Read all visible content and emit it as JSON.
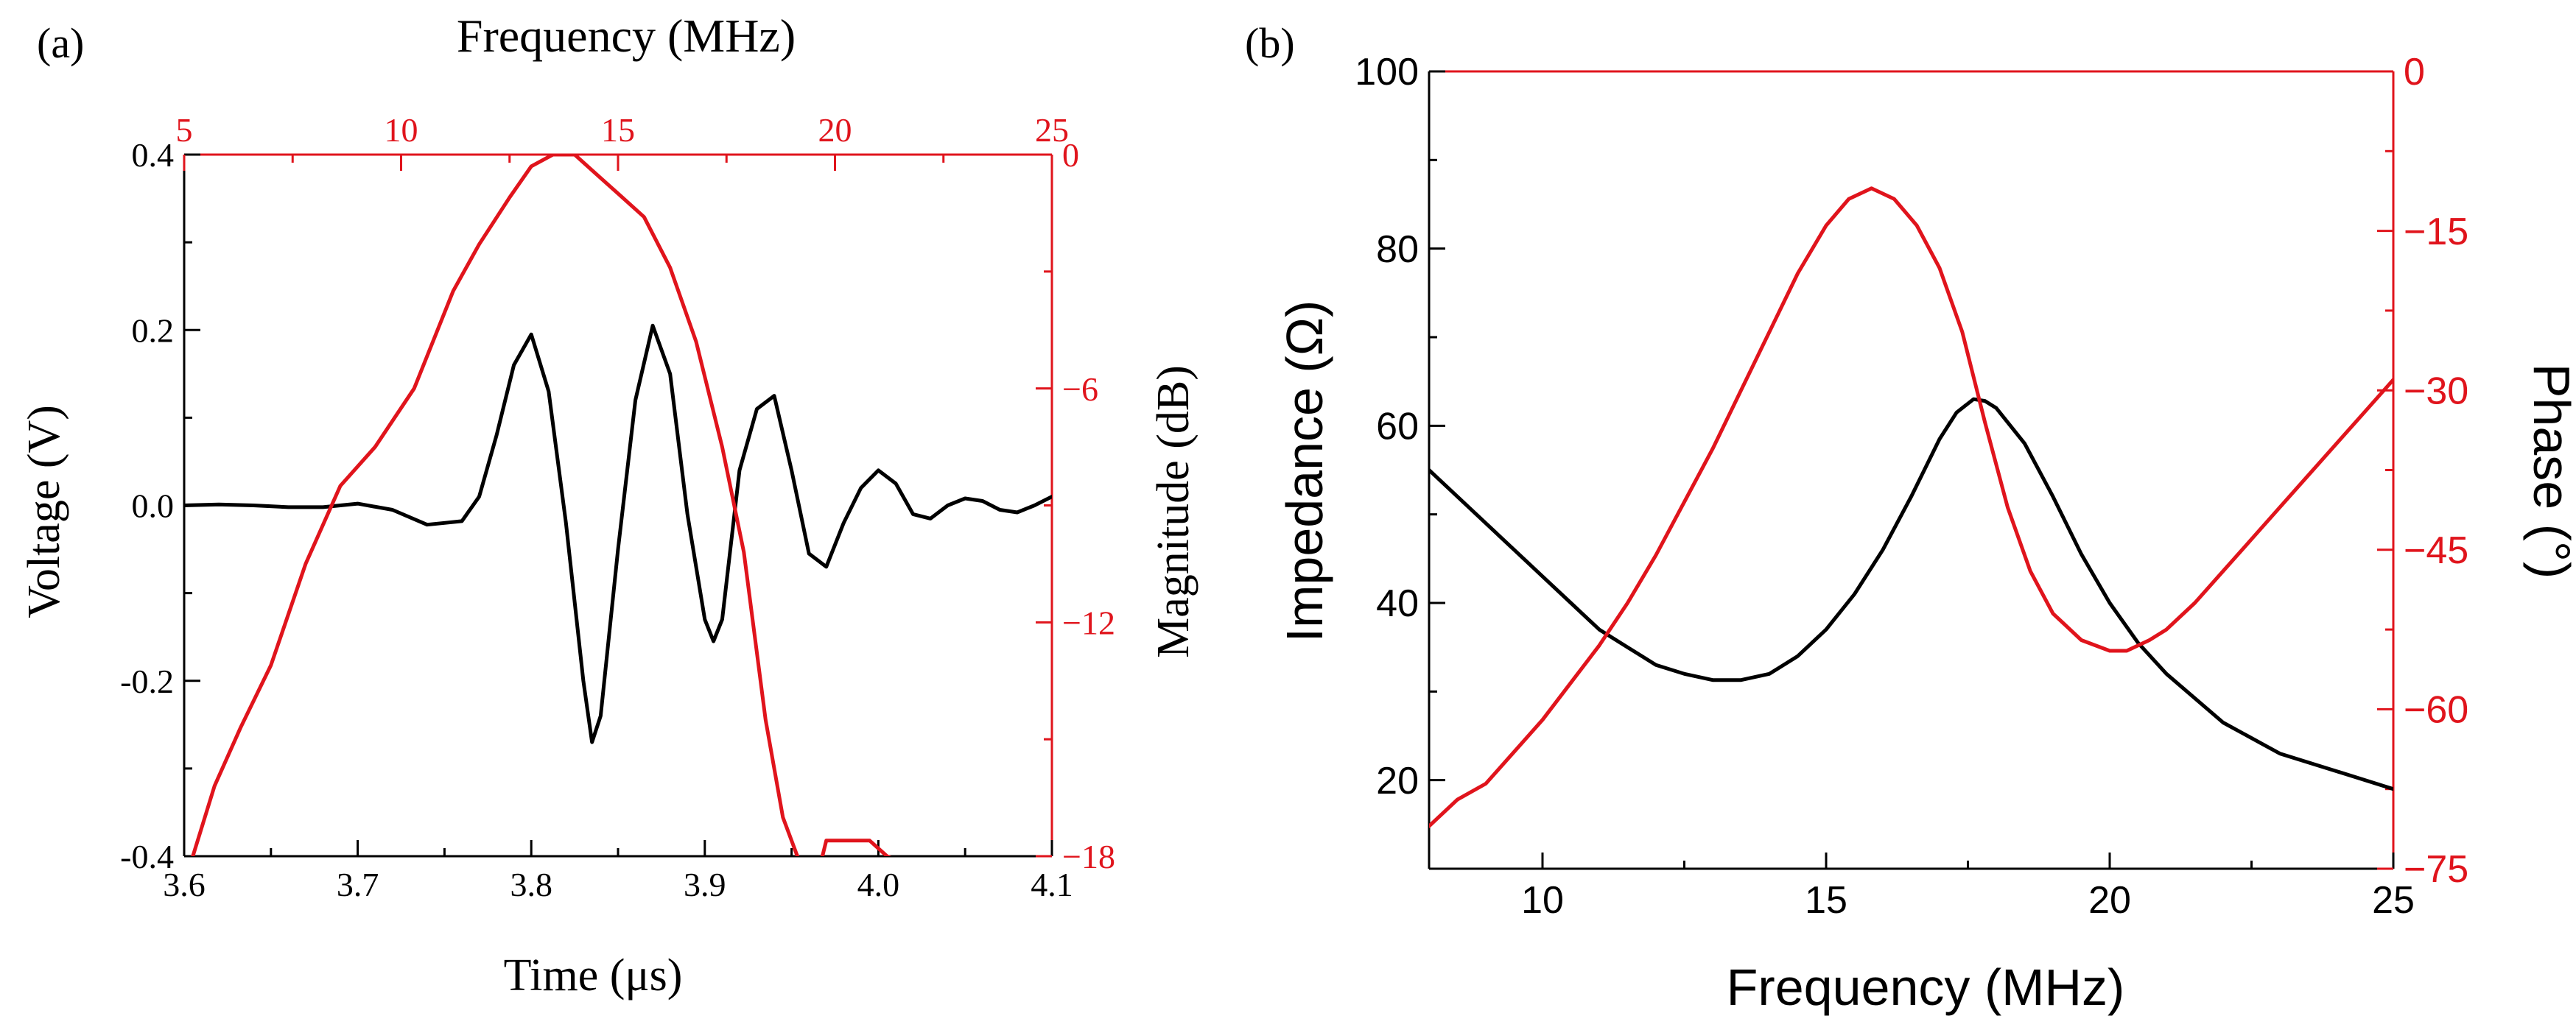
{
  "colors": {
    "black": "#000000",
    "red": "#e0141c"
  },
  "chart_data": [
    {
      "panel_label": "(a)",
      "type": "line",
      "title": "",
      "xlabel": "Time (μs)",
      "ylabel": "Voltage (V)",
      "x2label": "Frequency (MHz)",
      "y2label": "Magnitude (dB)",
      "xlim": [
        3.6,
        4.1
      ],
      "ylim": [
        -0.4,
        0.4
      ],
      "x2lim": [
        5,
        25
      ],
      "y2lim": [
        -18,
        0
      ],
      "xticks": [
        "3.6",
        "3.7",
        "3.8",
        "3.9",
        "4.0",
        "4.1"
      ],
      "yticks": [
        "-0.4",
        "-0.2",
        "0.0",
        "0.2",
        "0.4"
      ],
      "x2ticks": [
        "5",
        "10",
        "15",
        "20",
        "25"
      ],
      "y2ticks": [
        "−18",
        "−12",
        "−6",
        "0"
      ],
      "series": [
        {
          "name": "Voltage",
          "axis": "primary",
          "color": "#000000",
          "x": [
            3.6,
            3.62,
            3.64,
            3.66,
            3.68,
            3.7,
            3.72,
            3.74,
            3.75,
            3.76,
            3.77,
            3.78,
            3.79,
            3.8,
            3.81,
            3.82,
            3.83,
            3.835,
            3.84,
            3.85,
            3.86,
            3.87,
            3.88,
            3.89,
            3.9,
            3.905,
            3.91,
            3.92,
            3.93,
            3.94,
            3.95,
            3.96,
            3.97,
            3.98,
            3.99,
            4.0,
            4.01,
            4.02,
            4.03,
            4.04,
            4.05,
            4.06,
            4.07,
            4.08,
            4.09,
            4.1
          ],
          "y": [
            0.0,
            0.001,
            0.0,
            -0.002,
            -0.002,
            0.002,
            -0.005,
            -0.022,
            -0.02,
            -0.018,
            0.01,
            0.08,
            0.16,
            0.195,
            0.13,
            -0.02,
            -0.2,
            -0.27,
            -0.24,
            -0.05,
            0.12,
            0.205,
            0.15,
            -0.01,
            -0.13,
            -0.155,
            -0.13,
            0.04,
            0.11,
            0.125,
            0.04,
            -0.055,
            -0.07,
            -0.02,
            0.02,
            0.04,
            0.025,
            -0.01,
            -0.015,
            0.0,
            0.008,
            0.005,
            -0.005,
            -0.008,
            0.0,
            0.01
          ]
        },
        {
          "name": "Magnitude",
          "axis": "secondary",
          "color": "#e0141c",
          "x": [
            5.2,
            5.7,
            6.3,
            7.0,
            7.8,
            8.6,
            9.4,
            10.3,
            11.2,
            11.8,
            12.5,
            13.0,
            13.5,
            14.0,
            14.5,
            15.0,
            15.6,
            16.2,
            16.8,
            17.4,
            17.9,
            18.4,
            18.8,
            19.2,
            19.4,
            19.6,
            19.8,
            20.0,
            20.4,
            20.5,
            20.8,
            21.2,
            21.4
          ],
          "y": [
            -18.0,
            -16.2,
            -14.7,
            -13.1,
            -10.5,
            -8.5,
            -7.5,
            -6.0,
            -3.5,
            -2.3,
            -1.1,
            -0.3,
            0.0,
            0.0,
            -0.5,
            -1.0,
            -1.6,
            -2.9,
            -4.8,
            -7.5,
            -10.2,
            -14.5,
            -17.0,
            -18.2,
            -18.5,
            -18.5,
            -17.6,
            -17.6,
            -17.6,
            -17.6,
            -17.6,
            -18.0,
            -18.1
          ]
        }
      ]
    },
    {
      "panel_label": "(b)",
      "type": "line",
      "title": "",
      "xlabel": "Frequency (MHz)",
      "ylabel": "Impedance (Ω)",
      "y2label": "Phase (°)",
      "xlim": [
        8,
        25
      ],
      "ylim": [
        10,
        100
      ],
      "y2lim": [
        -75,
        0
      ],
      "xticks": [
        "10",
        "15",
        "20",
        "25"
      ],
      "yticks": [
        "20",
        "40",
        "60",
        "80",
        "100"
      ],
      "y2ticks": [
        "−75",
        "−60",
        "−45",
        "−30",
        "−15",
        "0"
      ],
      "series": [
        {
          "name": "Impedance",
          "axis": "primary",
          "color": "#000000",
          "x": [
            8,
            8.5,
            9,
            9.5,
            10,
            10.5,
            11,
            11.5,
            12,
            12.5,
            13,
            13.5,
            14,
            14.5,
            15,
            15.5,
            16,
            16.5,
            17,
            17.3,
            17.6,
            17.8,
            18,
            18.5,
            19,
            19.5,
            20,
            20.5,
            21,
            22,
            23,
            24,
            25
          ],
          "y": [
            55,
            52,
            49,
            46,
            43,
            40,
            37,
            35,
            33,
            32,
            31.3,
            31.3,
            32,
            34,
            37,
            41,
            46,
            52,
            58.5,
            61.5,
            63,
            62.8,
            62,
            58,
            52,
            45.5,
            40,
            35.5,
            32,
            26.5,
            23,
            21,
            19
          ]
        },
        {
          "name": "Phase",
          "axis": "secondary",
          "color": "#e0141c",
          "x": [
            8,
            8.5,
            9,
            9.5,
            10,
            10.5,
            11,
            11.5,
            12,
            12.5,
            13,
            13.5,
            14,
            14.5,
            15,
            15.4,
            15.8,
            16.2,
            16.6,
            17,
            17.4,
            17.8,
            18.2,
            18.6,
            19,
            19.5,
            20,
            20.3,
            20.7,
            21,
            21.5,
            22,
            22.5,
            23,
            23.5,
            24,
            24.5,
            25
          ],
          "y": [
            -71,
            -68.5,
            -67,
            -64,
            -61,
            -57.5,
            -54,
            -50,
            -45.5,
            -40.5,
            -35.5,
            -30,
            -24.5,
            -19,
            -14.5,
            -12,
            -11,
            -12,
            -14.5,
            -18.5,
            -24.5,
            -33,
            -41,
            -47,
            -51,
            -53.5,
            -54.5,
            -54.5,
            -53.5,
            -52.5,
            -50,
            -47,
            -44,
            -41,
            -38,
            -35,
            -32,
            -29
          ]
        }
      ]
    }
  ]
}
